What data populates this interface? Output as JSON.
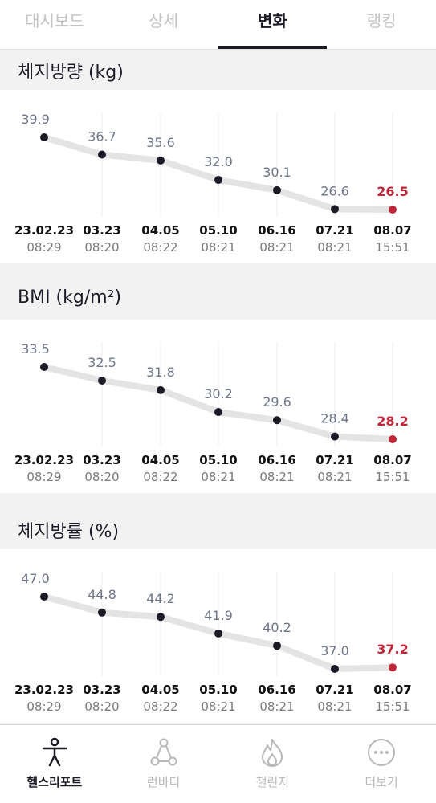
{
  "tabs": [
    {
      "label": "대시보드",
      "active": false
    },
    {
      "label": "상세",
      "active": false
    },
    {
      "label": "변화",
      "active": true
    },
    {
      "label": "랭킹",
      "active": false
    }
  ],
  "dates": [
    {
      "date": "23.02.23",
      "time": "08:29"
    },
    {
      "date": "03.23",
      "time": "08:20"
    },
    {
      "date": "04.05",
      "time": "08:22"
    },
    {
      "date": "05.10",
      "time": "08:21"
    },
    {
      "date": "06.16",
      "time": "08:21"
    },
    {
      "date": "07.21",
      "time": "08:21"
    },
    {
      "date": "08.07",
      "time": "15:51"
    }
  ],
  "chart_data": [
    {
      "type": "line",
      "title": "체지방량 (kg)",
      "x": [
        "23.02.23 08:29",
        "03.23 08:20",
        "04.05 08:22",
        "05.10 08:21",
        "06.16 08:21",
        "07.21 08:21",
        "08.07 15:51"
      ],
      "values": [
        39.9,
        36.7,
        35.6,
        32.0,
        30.1,
        26.6,
        26.5
      ],
      "labels": [
        "39.9",
        "36.7",
        "35.6",
        "32.0",
        "30.1",
        "26.6",
        "26.5"
      ],
      "highlight_last": true
    },
    {
      "type": "line",
      "title": "BMI (kg/m²)",
      "x": [
        "23.02.23 08:29",
        "03.23 08:20",
        "04.05 08:22",
        "05.10 08:21",
        "06.16 08:21",
        "07.21 08:21",
        "08.07 15:51"
      ],
      "values": [
        33.5,
        32.5,
        31.8,
        30.2,
        29.6,
        28.4,
        28.2
      ],
      "labels": [
        "33.5",
        "32.5",
        "31.8",
        "30.2",
        "29.6",
        "28.4",
        "28.2"
      ],
      "highlight_last": true
    },
    {
      "type": "line",
      "title": "체지방률 (%)",
      "x": [
        "23.02.23 08:29",
        "03.23 08:20",
        "04.05 08:22",
        "05.10 08:21",
        "06.16 08:21",
        "07.21 08:21",
        "08.07 15:51"
      ],
      "values": [
        47.0,
        44.8,
        44.2,
        41.9,
        40.2,
        37.0,
        37.2
      ],
      "labels": [
        "47.0",
        "44.8",
        "44.2",
        "41.9",
        "40.2",
        "37.0",
        "37.2"
      ],
      "highlight_last": true
    }
  ],
  "colors": {
    "point": "#1b1b26",
    "highlight": "#c0283a",
    "line": "#e4e4e4",
    "value_label": "#6e7588",
    "grid": "#ececec"
  },
  "bottom_nav": [
    {
      "label": "헬스리포트",
      "icon": "person-icon",
      "active": true
    },
    {
      "label": "런바디",
      "icon": "run-body-icon",
      "active": false
    },
    {
      "label": "챌린지",
      "icon": "flame-icon",
      "active": false
    },
    {
      "label": "더보기",
      "icon": "more-icon",
      "active": false
    }
  ]
}
